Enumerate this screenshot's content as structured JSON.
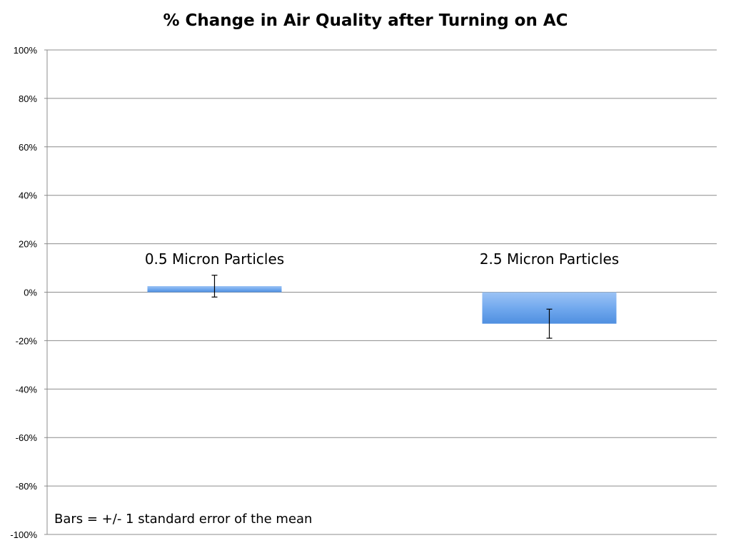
{
  "chart_data": {
    "type": "bar",
    "title": "% Change in Air Quality after Turning on AC",
    "xlabel": "",
    "ylabel": "",
    "ylim": [
      -100,
      100
    ],
    "yticks": [
      "100%",
      "80%",
      "60%",
      "40%",
      "20%",
      "0%",
      "-20%",
      "-40%",
      "-60%",
      "-80%",
      "-100%"
    ],
    "ytick_values": [
      100,
      80,
      60,
      40,
      20,
      0,
      -20,
      -40,
      -60,
      -80,
      -100
    ],
    "categories": [
      "0.5 Micron Particles",
      "2.5 Micron Particles"
    ],
    "values": [
      2.5,
      -13
    ],
    "error": [
      4.5,
      6
    ],
    "grid": true,
    "annotation": "Bars =  +/- 1  standard error of the mean",
    "bar_color": "#6fa8ee"
  }
}
